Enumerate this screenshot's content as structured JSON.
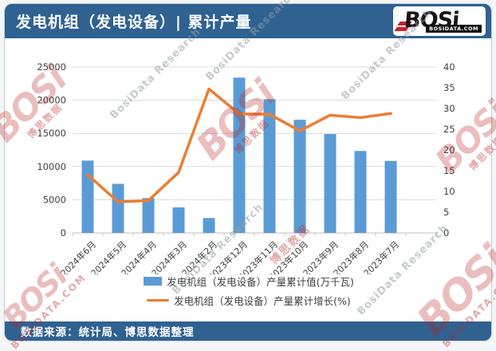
{
  "header": {
    "title": "发电机组（发电设备）| 累计产量",
    "logo": {
      "name": "BOSi",
      "domain": "BOSIDATA.COM"
    }
  },
  "footer": {
    "source": "数据来源：统计局、博思数据整理"
  },
  "watermark": {
    "logo_text": "BOSi",
    "cn_text": "博思数据",
    "en_text": "BosiData Research",
    "domain_text": "BOSIDATA.COM"
  },
  "colors": {
    "header_bg": "#2F6191",
    "bar": "#5B9BD5",
    "line": "#ED7D31",
    "grid": "#D9D9D9",
    "axis_line": "#BFBFBF",
    "axis_text": "#404040",
    "watermark_red": "#B92823",
    "watermark_gray": "#969EA8"
  },
  "chart_data": {
    "type": "bar",
    "subtype": "bar+line combo, dual axis",
    "title": "发电机组（发电设备）| 累计产量",
    "categories": [
      "2024年6月",
      "2024年5月",
      "2024年4月",
      "2024年3月",
      "2024年2月",
      "2023年12月",
      "2023年11月",
      "2023年10月",
      "2023年9月",
      "2023年8月",
      "2023年7月"
    ],
    "series": [
      {
        "name": "发电机组（发电设备）产量累计值(万千瓦)",
        "type": "bar",
        "axis": "left",
        "color": "#5B9BD5",
        "values": [
          10900,
          7400,
          5250,
          3850,
          2250,
          23400,
          20150,
          17050,
          14900,
          12350,
          10850
        ]
      },
      {
        "name": "发电机组（发电设备）产量累计增长(%)",
        "type": "line",
        "axis": "right",
        "color": "#ED7D31",
        "values": [
          14.0,
          7.5,
          7.8,
          14.6,
          34.7,
          28.7,
          28.6,
          24.6,
          28.4,
          27.8,
          28.8
        ]
      }
    ],
    "left_axis": {
      "min": 0,
      "max": 25000,
      "step": 5000,
      "ticks": [
        "0",
        "5000",
        "10000",
        "15000",
        "20000",
        "25000"
      ]
    },
    "right_axis": {
      "min": 0,
      "max": 40,
      "step": 5,
      "ticks": [
        "0",
        "5",
        "10",
        "15",
        "20",
        "25",
        "30",
        "35",
        "40"
      ]
    },
    "grid": true,
    "legend_position": "bottom"
  }
}
